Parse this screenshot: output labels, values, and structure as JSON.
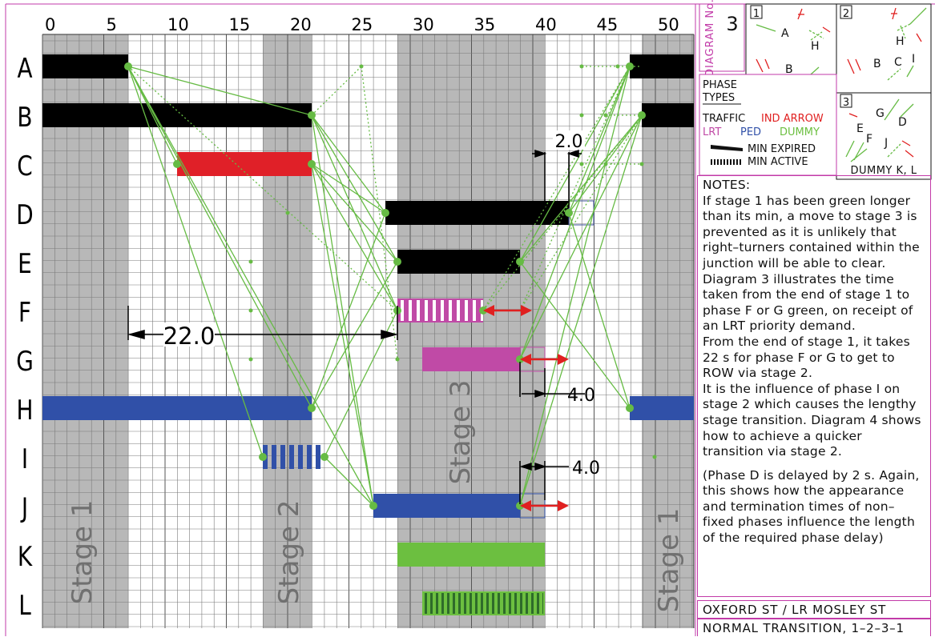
{
  "time_axis": {
    "ticks": [
      "0",
      "5",
      "10",
      "15",
      "20",
      "25",
      "30",
      "35",
      "40",
      "45",
      "50"
    ]
  },
  "phases": [
    "A",
    "B",
    "C",
    "D",
    "E",
    "F",
    "G",
    "H",
    "I",
    "J",
    "K",
    "L"
  ],
  "stages": {
    "stage1_left": "Stage 1",
    "stage2": "Stage 2",
    "stage3": "Stage 3",
    "stage1_right": "Stage 1"
  },
  "dimensions": {
    "d22": "22.0",
    "d2": "2.0",
    "d4a": "4.0",
    "d4b": "4.0"
  },
  "diagram_box": {
    "label": "DIAGRAM No.",
    "number": "3"
  },
  "mini_diagrams": {
    "box1": {
      "num": "1",
      "labels": [
        "A",
        "H",
        "B"
      ]
    },
    "box2": {
      "num": "2",
      "labels": [
        "H",
        "B",
        "C",
        "I"
      ]
    },
    "box3": {
      "num": "3",
      "labels": [
        "G",
        "D",
        "E",
        "F",
        "J"
      ],
      "footer": "DUMMY K, L"
    }
  },
  "legend": {
    "heading_1": "PHASE",
    "heading_2": "TYPES",
    "traffic": "TRAFFIC",
    "ind_arrow": "IND ARROW",
    "lrt": "LRT",
    "ped": "PED",
    "dummy": "DUMMY",
    "min_expired": "MIN EXPIRED",
    "min_active": "MIN ACTIVE"
  },
  "notes": {
    "heading": "NOTES:",
    "para1": "If stage 1 has been green longer than its min, a move to stage 3 is prevented as it is unlikely that right–turners contained within the junction will be able to clear.  Diagram 3 illustrates the time taken from the end of stage 1 to phase F or G green, on receipt of an LRT priority demand.",
    "para2": "From the end of stage 1, it takes 22 s for phase F or G to get to ROW via stage 2.",
    "para3": "It is the influence of phase I on stage 2 which causes the lengthy stage transition. Diagram 4 shows how to achieve a quicker transition via stage 2.",
    "para4": "(Phase D is delayed by 2 s. Again, this shows how the appearance and termination times of non–fixed phases influence the length of the required phase delay)"
  },
  "title": {
    "junction": "OXFORD ST / LR MOSLEY ST",
    "transition": "NORMAL TRANSITION, 1–2–3–1"
  },
  "colors": {
    "traffic": "#000000",
    "ind_arrow": "#e02020",
    "lrt": "#c04aa6",
    "ped": "#3050a8",
    "dummy": "#6cbf40",
    "stage_band": "#b8b8b8",
    "frame": "#c23aa8",
    "link": "#66bb44"
  }
}
